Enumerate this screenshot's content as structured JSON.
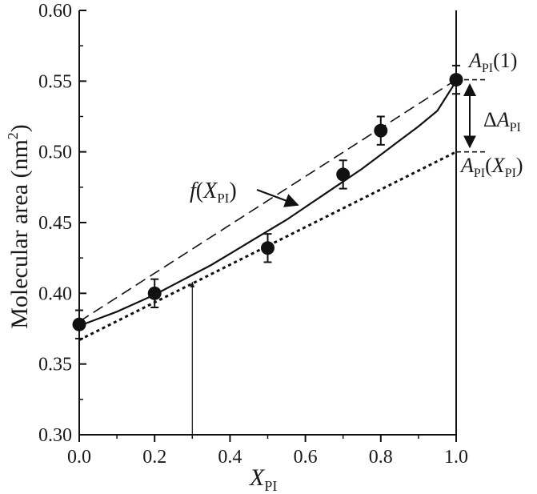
{
  "chart_data": {
    "type": "scatter",
    "ylabel": "Molecular area (nm²)",
    "ylabel_main": "Molecular area (nm",
    "ylabel_sup": "2",
    "ylabel_close": ")",
    "xlabel_var": "X",
    "xlabel_sub": "PI",
    "xlim": [
      0.0,
      1.0
    ],
    "ylim": [
      0.3,
      0.6
    ],
    "x_ticks": [
      {
        "value": 0.0,
        "label": "0.0"
      },
      {
        "value": 0.2,
        "label": "0.2"
      },
      {
        "value": 0.4,
        "label": "0.4"
      },
      {
        "value": 0.6,
        "label": "0.6"
      },
      {
        "value": 0.8,
        "label": "0.8"
      },
      {
        "value": 1.0,
        "label": "1.0"
      }
    ],
    "y_ticks": [
      {
        "value": 0.3,
        "label": "0.30"
      },
      {
        "value": 0.35,
        "label": "0.35"
      },
      {
        "value": 0.4,
        "label": "0.40"
      },
      {
        "value": 0.45,
        "label": "0.45"
      },
      {
        "value": 0.5,
        "label": "0.50"
      },
      {
        "value": 0.55,
        "label": "0.55"
      },
      {
        "value": 0.6,
        "label": "0.60"
      }
    ],
    "points": [
      {
        "x": 0.0,
        "y": 0.378,
        "err": 0.01
      },
      {
        "x": 0.2,
        "y": 0.4,
        "err": 0.01
      },
      {
        "x": 0.5,
        "y": 0.432,
        "err": 0.01
      },
      {
        "x": 0.7,
        "y": 0.484,
        "err": 0.01
      },
      {
        "x": 0.8,
        "y": 0.515,
        "err": 0.01
      },
      {
        "x": 1.0,
        "y": 0.551,
        "err": 0.01
      }
    ],
    "fit_curve": {
      "label_fn": "f",
      "label_open": "(",
      "label_var": "X",
      "label_sub": "PI",
      "label_close": ")",
      "points": [
        [
          0.0,
          0.377
        ],
        [
          0.05,
          0.382
        ],
        [
          0.1,
          0.387
        ],
        [
          0.15,
          0.393
        ],
        [
          0.2,
          0.399
        ],
        [
          0.25,
          0.406
        ],
        [
          0.3,
          0.413
        ],
        [
          0.35,
          0.42
        ],
        [
          0.4,
          0.428
        ],
        [
          0.45,
          0.436
        ],
        [
          0.5,
          0.444
        ],
        [
          0.55,
          0.452
        ],
        [
          0.6,
          0.461
        ],
        [
          0.65,
          0.47
        ],
        [
          0.7,
          0.479
        ],
        [
          0.75,
          0.488
        ],
        [
          0.8,
          0.498
        ],
        [
          0.85,
          0.508
        ],
        [
          0.9,
          0.518
        ],
        [
          0.95,
          0.529
        ],
        [
          1.0,
          0.55
        ]
      ]
    },
    "dashed_line": {
      "from": [
        0.0,
        0.38
      ],
      "to": [
        1.0,
        0.551
      ]
    },
    "dotted_tangent": {
      "from": [
        0.0,
        0.367
      ],
      "to": [
        1.0,
        0.5
      ]
    },
    "vertical_line_x": 1.0,
    "vertical_arrow": {
      "x": 0.3,
      "y_from": 0.3,
      "y_to": 0.409
    },
    "annotations": {
      "a_pi_one": {
        "var": "A",
        "sub": "PI",
        "rest": "(1)"
      },
      "delta_a": {
        "delta": "Δ",
        "var": "A",
        "sub": "PI"
      },
      "a_pi_x": {
        "var": "A",
        "sub": "PI",
        "open": "(",
        "var2": "X",
        "sub2": "PI",
        "close": ")"
      }
    }
  }
}
